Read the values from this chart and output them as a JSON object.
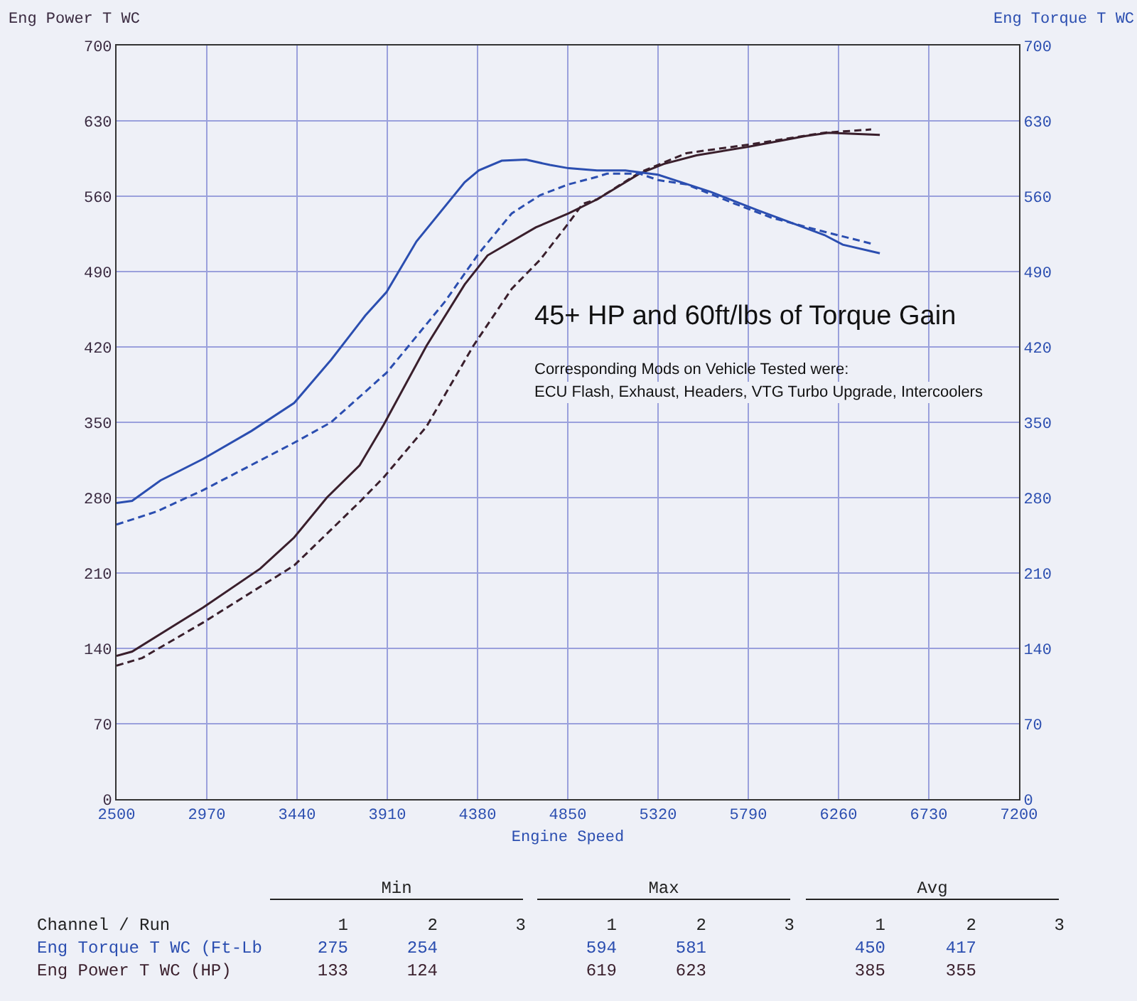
{
  "chart_data": {
    "type": "line",
    "xlabel": "Engine Speed",
    "ylabel": "Eng Power T WC",
    "y2label": "Eng Torque T WC",
    "xlim": [
      2500,
      7200
    ],
    "xticks": [
      2500,
      2970,
      3440,
      3910,
      4380,
      4850,
      5320,
      5790,
      6260,
      6730,
      7200
    ],
    "ylim": [
      0,
      700
    ],
    "yticks": [
      0,
      70,
      140,
      210,
      280,
      350,
      420,
      490,
      560,
      630,
      700
    ],
    "y2lim": [
      0,
      700
    ],
    "y2ticks": [
      0,
      70,
      140,
      210,
      280,
      350,
      420,
      490,
      560,
      630,
      700
    ],
    "grid": true,
    "marker": "none",
    "series": [
      {
        "color": "#2b4eb0",
        "axis": "y2",
        "line_style": "solid",
        "x": [
          2500,
          2581,
          2729,
          2951,
          3203,
          3425,
          3617,
          3795,
          3906,
          4062,
          4313,
          4387,
          4506,
          4632,
          4757,
          4854,
          5002,
          5150,
          5320,
          5594,
          5838,
          6186,
          6282,
          6475
        ],
        "values": [
          275,
          277,
          296,
          316,
          342,
          368,
          408,
          449,
          471,
          518,
          573,
          584,
          593,
          594,
          589,
          586,
          584,
          584,
          580,
          564,
          547,
          524,
          515,
          507
        ]
      },
      {
        "color": "#2b4eb0",
        "axis": "y2",
        "line_style": "dashed",
        "x": [
          2500,
          2707,
          2951,
          3425,
          3617,
          3906,
          4040,
          4210,
          4387,
          4558,
          4706,
          4854,
          5002,
          5054,
          5224,
          5320,
          5468,
          5720,
          5912,
          6186,
          6430
        ],
        "values": [
          255,
          267,
          287,
          331,
          350,
          396,
          425,
          462,
          507,
          544,
          561,
          571,
          578,
          581,
          581,
          575,
          571,
          553,
          540,
          527,
          516
        ]
      },
      {
        "color": "#3a1f2c",
        "axis": "y",
        "line_style": "solid",
        "x": [
          2500,
          2581,
          2951,
          3248,
          3425,
          3595,
          3766,
          3892,
          4114,
          4313,
          4432,
          4683,
          4854,
          5002,
          5224,
          5350,
          5520,
          5794,
          6090,
          6208,
          6475
        ],
        "values": [
          133,
          137,
          178,
          214,
          243,
          280,
          310,
          348,
          421,
          478,
          505,
          531,
          544,
          557,
          581,
          590,
          598,
          606,
          616,
          619,
          617
        ]
      },
      {
        "color": "#3a1f2c",
        "axis": "y",
        "line_style": "dashed",
        "x": [
          2500,
          2633,
          2951,
          3425,
          3766,
          3892,
          4114,
          4358,
          4558,
          4706,
          4854,
          4928,
          5002,
          5224,
          5468,
          5794,
          6186,
          6430
        ],
        "values": [
          124,
          131,
          164,
          217,
          276,
          299,
          346,
          421,
          474,
          501,
          535,
          553,
          557,
          582,
          600,
          608,
          619,
          622
        ]
      }
    ],
    "annotations": [
      "45+ HP and 60ft/lbs of Torque Gain",
      "Corresponding Mods on Vehicle Tested were:",
      "ECU Flash, Exhaust, Headers, VTG Turbo Upgrade, Intercoolers",
      "Min",
      "Max",
      "Avg",
      "Channel / Run",
      "1",
      "2",
      "3",
      "1",
      "2",
      "3",
      "1",
      "2",
      "3",
      "Eng Torque T WC (Ft-Lb",
      "275",
      "254",
      "594",
      "581",
      "450",
      "417",
      "Eng Power T WC (HP)",
      "133",
      "124",
      "619",
      "623",
      "385",
      "355"
    ]
  }
}
